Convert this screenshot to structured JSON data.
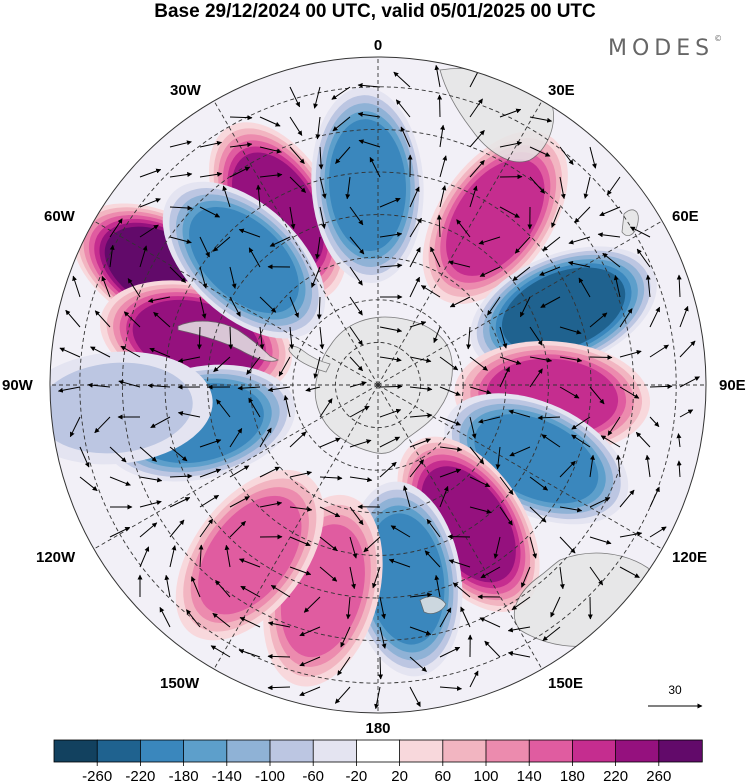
{
  "title": "Base 29/12/2024 00 UTC, valid 05/01/2025 00 UTC",
  "brand": "MODES",
  "brand_mark": "©",
  "meridian_labels": {
    "lon0": "0",
    "lon30e": "30E",
    "lon60e": "60E",
    "lon90e": "90E",
    "lon120e": "120E",
    "lon150e": "150E",
    "lon180": "180",
    "lon150w": "150W",
    "lon120w": "120W",
    "lon90w": "90W",
    "lon60w": "60W",
    "lon30w": "30W"
  },
  "vector_reference": {
    "value": "30"
  },
  "colorbar": {
    "ticks": [
      "-260",
      "-220",
      "-180",
      "-140",
      "-100",
      "-60",
      "-20",
      "20",
      "60",
      "100",
      "140",
      "180",
      "220",
      "260"
    ],
    "colors": [
      "#12415f",
      "#1f628f",
      "#3a87bd",
      "#5d9fcb",
      "#8fb2d6",
      "#bcc6e2",
      "#e4e4f1",
      "#ffffff",
      "#f8d8dc",
      "#f2b5c1",
      "#ec8bae",
      "#e05ca0",
      "#c52d8f",
      "#95117e",
      "#620a6a"
    ]
  },
  "anomalies": [
    {
      "lon": -62,
      "lat": -33,
      "value": 240
    },
    {
      "lon": -76,
      "lat": -46,
      "value": 200
    },
    {
      "lon": -30,
      "lat": -43,
      "value": 230
    },
    {
      "lon": -3,
      "lat": -43,
      "value": -190
    },
    {
      "lon": 35,
      "lat": -42,
      "value": 170
    },
    {
      "lon": 68,
      "lat": -43,
      "value": -200
    },
    {
      "lon": 94,
      "lat": -49,
      "value": 170
    },
    {
      "lon": 115,
      "lat": -49,
      "value": -190
    },
    {
      "lon": 147,
      "lat": -51,
      "value": 220
    },
    {
      "lon": 172,
      "lat": -44,
      "value": -180
    },
    {
      "lon": -165,
      "lat": -40,
      "value": 150
    },
    {
      "lon": -143,
      "lat": -40,
      "value": 120
    },
    {
      "lon": -102,
      "lat": -47,
      "value": -160
    },
    {
      "lon": -47,
      "lat": -47,
      "value": -190
    },
    {
      "lon": -95,
      "lat": -28,
      "value": -60
    }
  ]
}
